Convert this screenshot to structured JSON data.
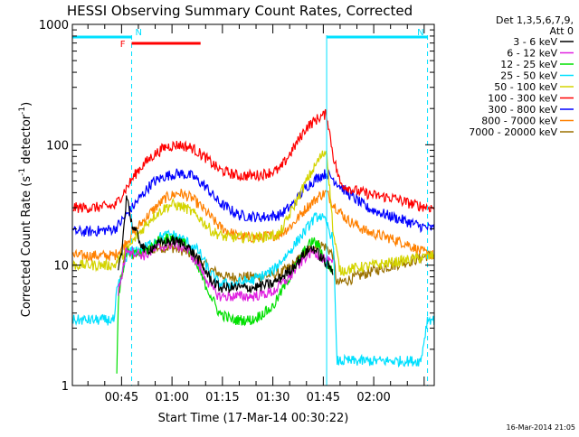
{
  "chart_data": {
    "type": "line",
    "title": "HESSI Observing Summary Count Rates, Corrected",
    "xlabel": "Start Time (17-Mar-14 00:30:22)",
    "ylabel": "Corrected Count Rate (s⁻¹ detector⁻¹)",
    "ylabel_parts": [
      "Corrected Count Rate (s",
      "-1",
      " detector",
      "-1",
      ")"
    ],
    "yscale": "log",
    "ylim": [
      1,
      1000
    ],
    "xlim_minutes": [
      30.37,
      138
    ],
    "x_ticks": [
      {
        "label": "00:45",
        "minutes": 45
      },
      {
        "label": "01:00",
        "minutes": 60
      },
      {
        "label": "01:15",
        "minutes": 75
      },
      {
        "label": "01:30",
        "minutes": 90
      },
      {
        "label": "01:45",
        "minutes": 105
      },
      {
        "label": "02:00",
        "minutes": 120
      }
    ],
    "y_ticks": [
      {
        "label": "1",
        "value": 1
      },
      {
        "label": "10",
        "value": 10
      },
      {
        "label": "100",
        "value": 100
      },
      {
        "label": "1000",
        "value": 1000
      }
    ],
    "legend": {
      "title": "Det 1,3,5,6,7,9,",
      "subtitle": "Att 0",
      "position": "right"
    },
    "series": [
      {
        "name": "3 - 6 keV",
        "color": "#000000",
        "x": [
          30.4,
          43,
          44,
          45,
          46.5,
          48,
          52,
          56,
          60,
          64,
          68,
          71,
          74,
          78,
          84,
          90,
          95,
          100,
          102,
          104,
          106,
          108,
          108.4
        ],
        "y": [
          null,
          null,
          9,
          12,
          40,
          22,
          13,
          15,
          16,
          15,
          11,
          8,
          6.5,
          6.5,
          6.5,
          7,
          9,
          13,
          14,
          12,
          10,
          9,
          null
        ]
      },
      {
        "name": "6 - 12 keV",
        "color": "#e020e0",
        "x": [
          30.4,
          43,
          44,
          45,
          46.5,
          48,
          52,
          56,
          60,
          64,
          68,
          71,
          74,
          78,
          84,
          90,
          95,
          100,
          102,
          104,
          106,
          108,
          108.4
        ],
        "y": [
          null,
          null,
          6,
          8,
          14,
          13,
          12,
          14,
          15,
          14,
          10,
          7,
          5.5,
          5.5,
          5.5,
          6,
          8,
          12,
          13,
          12,
          11,
          10,
          null
        ]
      },
      {
        "name": "12 - 25 keV",
        "color": "#00e000",
        "x": [
          30.4,
          43,
          43.5,
          44,
          45,
          46.5,
          48,
          52,
          56,
          60,
          64,
          68,
          71,
          74,
          78,
          84,
          90,
          95,
          100,
          102,
          104,
          106,
          108,
          108.4
        ],
        "y": [
          null,
          null,
          1,
          5,
          8,
          13,
          12,
          13,
          16,
          17,
          15,
          9,
          6,
          4,
          3.5,
          3.5,
          4.5,
          8,
          14,
          16,
          14,
          10,
          9,
          null
        ]
      },
      {
        "name": "25 - 50 keV",
        "color": "#00e0ff",
        "x": [
          30.4,
          37,
          43,
          43.5,
          45,
          46.5,
          48,
          52,
          56,
          60,
          64,
          68,
          71,
          74,
          78,
          84,
          90,
          95,
          100,
          102,
          104,
          106,
          108,
          109,
          115,
          120,
          130,
          134,
          136,
          138
        ],
        "y": [
          3.5,
          3.5,
          3.5,
          6,
          8,
          12,
          13,
          14,
          17,
          18,
          16,
          13,
          9,
          7,
          7,
          7.5,
          9,
          13,
          20,
          24,
          26,
          22,
          16,
          1.6,
          1.6,
          1.6,
          1.6,
          1.6,
          3.6,
          3.5
        ]
      },
      {
        "name": "50 - 100 keV",
        "color": "#d4d400",
        "x": [
          30.4,
          36,
          43,
          45,
          47,
          50,
          54,
          58,
          60,
          64,
          68,
          72,
          76,
          80,
          86,
          92,
          96,
          100,
          104,
          106,
          108,
          110,
          120,
          130,
          138
        ],
        "y": [
          10,
          10,
          10,
          12,
          14,
          18,
          25,
          30,
          32,
          30,
          25,
          19,
          17,
          17,
          17,
          18,
          30,
          50,
          78,
          90,
          18,
          9,
          10,
          11,
          12
        ]
      },
      {
        "name": "100 - 300 keV",
        "color": "#ff0000",
        "x": [
          30.4,
          36,
          43,
          46,
          50,
          54,
          58,
          62,
          66,
          70,
          74,
          80,
          86,
          92,
          96,
          100,
          104,
          106,
          108,
          110,
          114,
          120,
          126,
          130,
          134,
          137,
          138
        ],
        "y": [
          30,
          30,
          31,
          42,
          62,
          80,
          96,
          100,
          94,
          78,
          62,
          55,
          56,
          62,
          92,
          140,
          170,
          180,
          80,
          48,
          42,
          38,
          36,
          33,
          31,
          30,
          30
        ]
      },
      {
        "name": "300 - 800 keV",
        "color": "#0000ff",
        "x": [
          30.4,
          36,
          43,
          46,
          50,
          54,
          58,
          62,
          66,
          70,
          74,
          80,
          86,
          92,
          96,
          100,
          104,
          106,
          108,
          112,
          118,
          124,
          130,
          134,
          138
        ],
        "y": [
          19,
          19,
          20,
          25,
          35,
          48,
          55,
          58,
          55,
          45,
          33,
          26,
          25,
          26,
          32,
          45,
          55,
          58,
          52,
          40,
          30,
          26,
          23,
          21,
          20
        ]
      },
      {
        "name": "800 - 7000 keV",
        "color": "#ff8000",
        "x": [
          30.4,
          36,
          43,
          46,
          50,
          54,
          58,
          62,
          66,
          70,
          74,
          80,
          86,
          92,
          96,
          100,
          104,
          106,
          108,
          112,
          118,
          124,
          130,
          134,
          138
        ],
        "y": [
          12,
          12,
          12,
          15,
          21,
          28,
          36,
          40,
          36,
          28,
          21,
          17,
          17,
          18,
          22,
          30,
          38,
          40,
          32,
          24,
          19,
          17,
          15,
          13,
          12
        ]
      },
      {
        "name": "7000 - 20000 keV",
        "color": "#9a7000",
        "x": [
          30.4,
          43,
          44,
          45,
          46.5,
          48,
          52,
          56,
          60,
          64,
          68,
          72,
          76,
          80,
          86,
          92,
          96,
          100,
          104,
          106,
          108,
          109,
          115,
          120,
          126,
          132,
          136,
          138
        ],
        "y": [
          null,
          null,
          6,
          8,
          14,
          12,
          13,
          14,
          14,
          13,
          11,
          9,
          8,
          8,
          8,
          8.5,
          10,
          13,
          15,
          14,
          12,
          7,
          8,
          9,
          10,
          11,
          12,
          12
        ]
      }
    ],
    "annotations": [
      {
        "label": "N",
        "color": "#00e0ff",
        "x_start": 30.4,
        "x_end": 48
      },
      {
        "label": "N",
        "color": "#00e0ff",
        "x_start": 106,
        "x_end": 136
      },
      {
        "label": "F",
        "color": "#ff0000",
        "x_start": 48,
        "x_end": 68.5
      }
    ],
    "dashed_markers": [
      48,
      136
    ],
    "solid_markers": [
      106
    ],
    "timestamp": "16-Mar-2014 21:05"
  }
}
